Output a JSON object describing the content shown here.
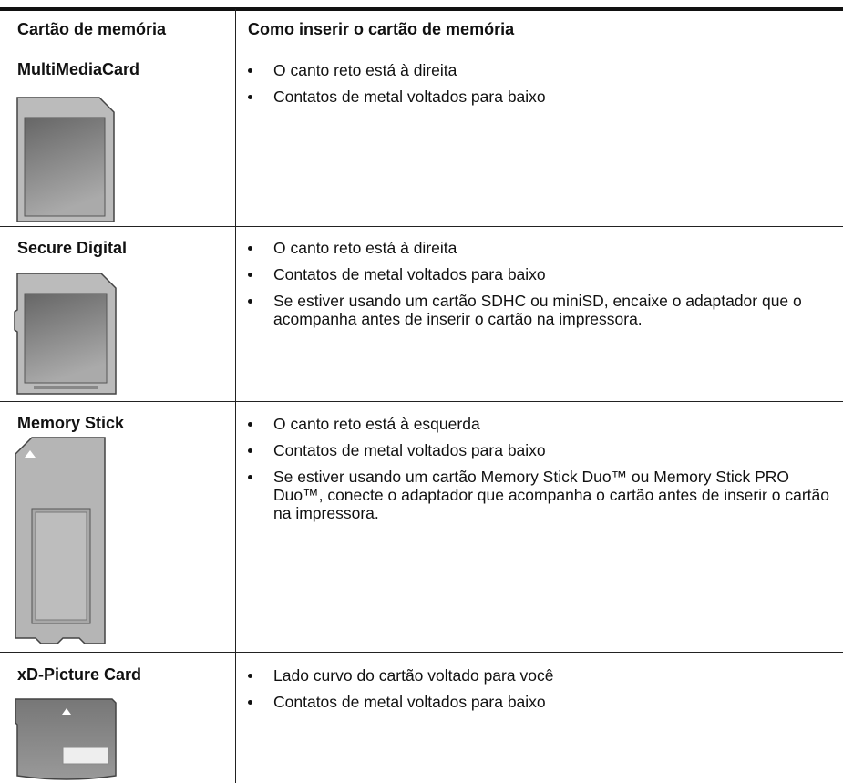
{
  "table": {
    "headers": [
      "Cartão de memória",
      "Como inserir o cartão de memória"
    ],
    "rows": [
      {
        "card": "MultiMediaCard",
        "instructions": [
          "O canto reto está à direita",
          "Contatos de metal voltados para baixo"
        ]
      },
      {
        "card": "Secure Digital",
        "instructions": [
          "O canto reto está à direita",
          "Contatos de metal voltados para baixo",
          "Se estiver usando um cartão SDHC ou miniSD, encaixe o adaptador que o acompanha antes de inserir o cartão na impressora."
        ]
      },
      {
        "card": "Memory Stick",
        "instructions": [
          "O canto reto está à esquerda",
          "Contatos de metal voltados para baixo",
          "Se estiver usando um cartão Memory Stick Duo™ ou Memory Stick PRO Duo™, conecte o adaptador que acompanha o cartão antes de inserir o cartão na impressora."
        ]
      },
      {
        "card": "xD-Picture Card",
        "instructions": [
          "Lado curvo do cartão voltado para você",
          "Contatos de metal voltados para baixo"
        ]
      }
    ]
  }
}
